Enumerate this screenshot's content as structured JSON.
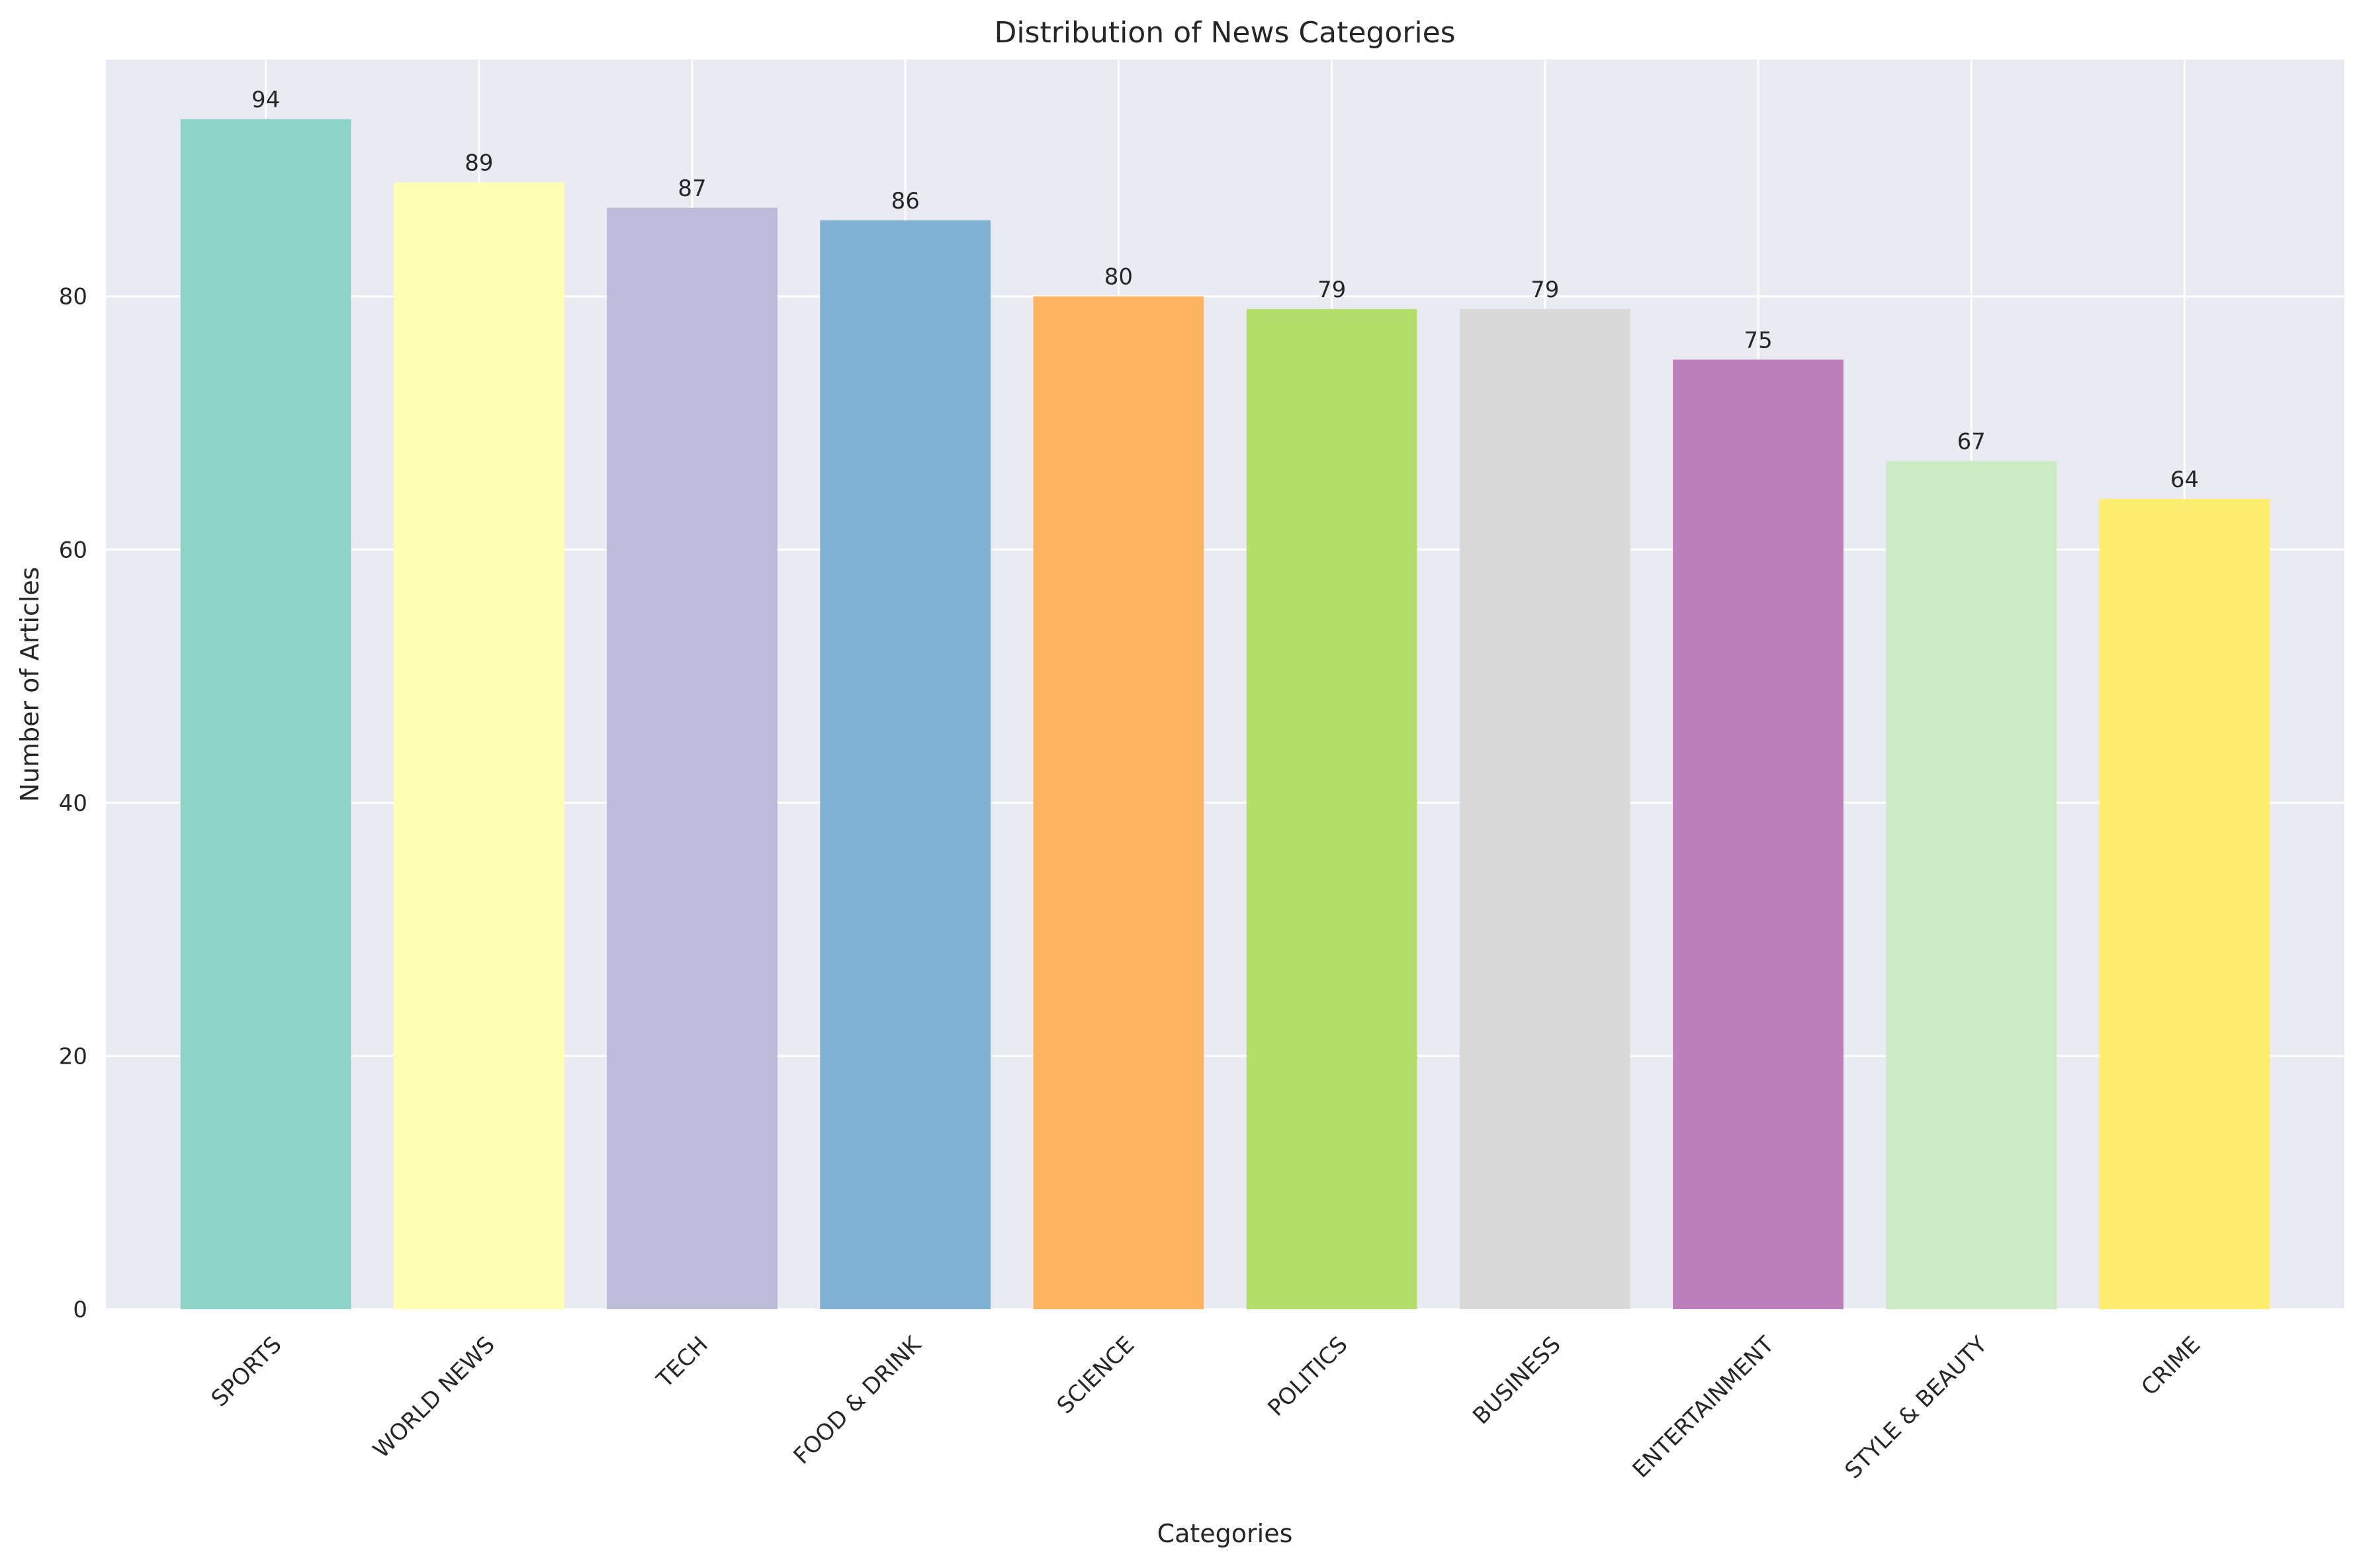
{
  "chart_data": {
    "type": "bar",
    "title": "Distribution of News Categories",
    "xlabel": "Categories",
    "ylabel": "Number of Articles",
    "categories": [
      "SPORTS",
      "WORLD NEWS",
      "TECH",
      "FOOD & DRINK",
      "SCIENCE",
      "POLITICS",
      "BUSINESS",
      "ENTERTAINMENT",
      "STYLE & BEAUTY",
      "CRIME"
    ],
    "values": [
      94,
      89,
      87,
      86,
      80,
      79,
      79,
      75,
      67,
      64
    ],
    "colors": [
      "#8dd3c7",
      "#ffffb3",
      "#bebada",
      "#80b1d3",
      "#fdb462",
      "#b3de69",
      "#d9d9d9",
      "#bc80bd",
      "#ccebc5",
      "#ffed6f"
    ],
    "ylim": [
      0,
      98.7
    ],
    "yticks": [
      0,
      20,
      40,
      60,
      80
    ],
    "grid": true,
    "background": "#eaeaf2",
    "tick_label_rotation": 45
  }
}
